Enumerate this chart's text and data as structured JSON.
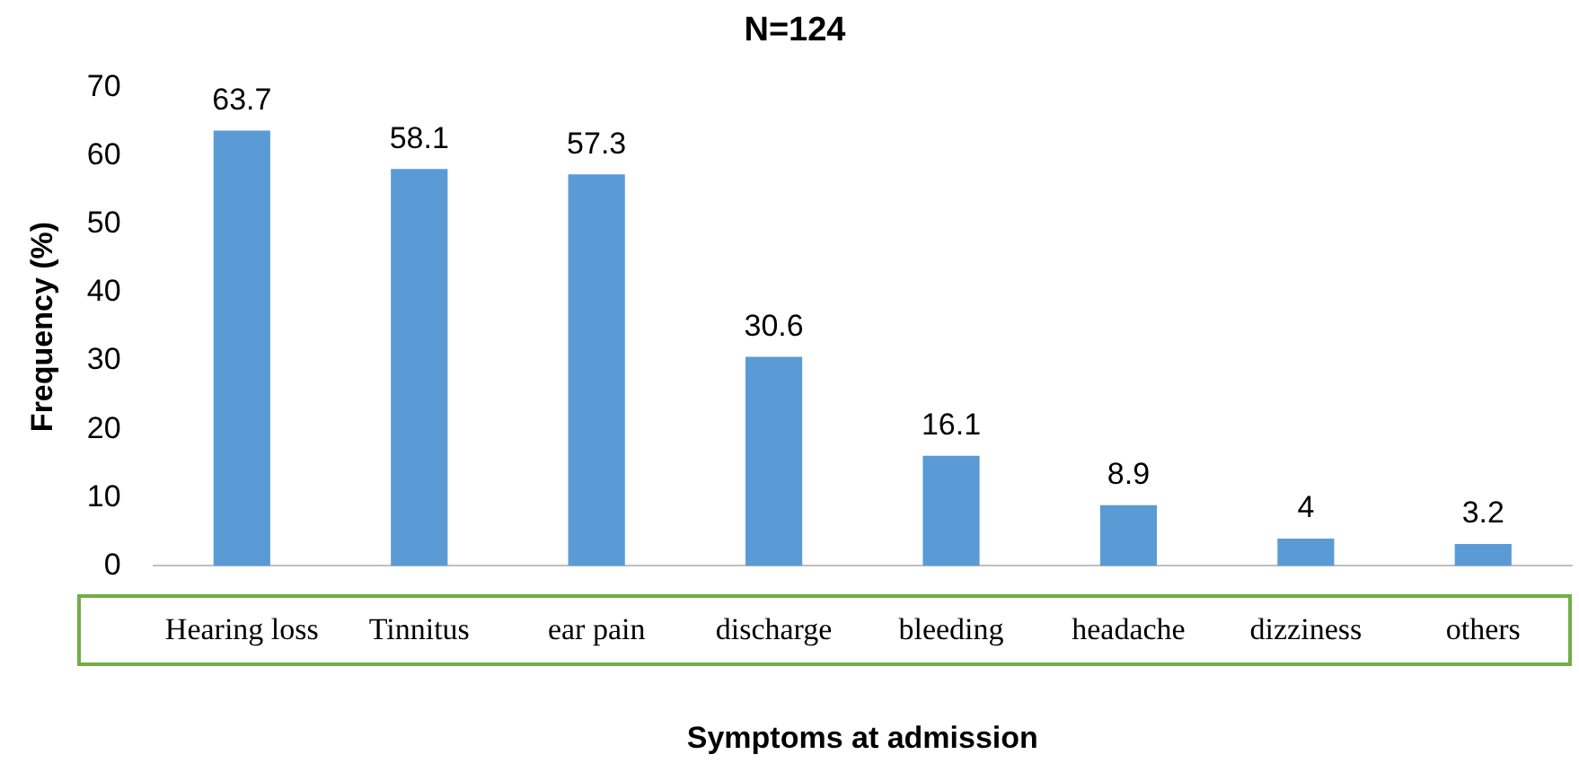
{
  "chart_data": {
    "type": "bar",
    "title": "N=124",
    "xlabel": "Symptoms at admission",
    "ylabel": "Frequency (%)",
    "categories": [
      "Hearing loss",
      "Tinnitus",
      "ear pain",
      "discharge",
      "bleeding",
      "headache",
      "dizziness",
      "others"
    ],
    "values": [
      63.7,
      58.1,
      57.3,
      30.6,
      16.1,
      8.9,
      4,
      3.2
    ],
    "color": "#5b9bd5",
    "ylim": [
      0,
      70
    ],
    "yticks": [
      0,
      10,
      20,
      30,
      40,
      50,
      60,
      70
    ],
    "grid": false,
    "data_labels": true,
    "legend": false
  }
}
